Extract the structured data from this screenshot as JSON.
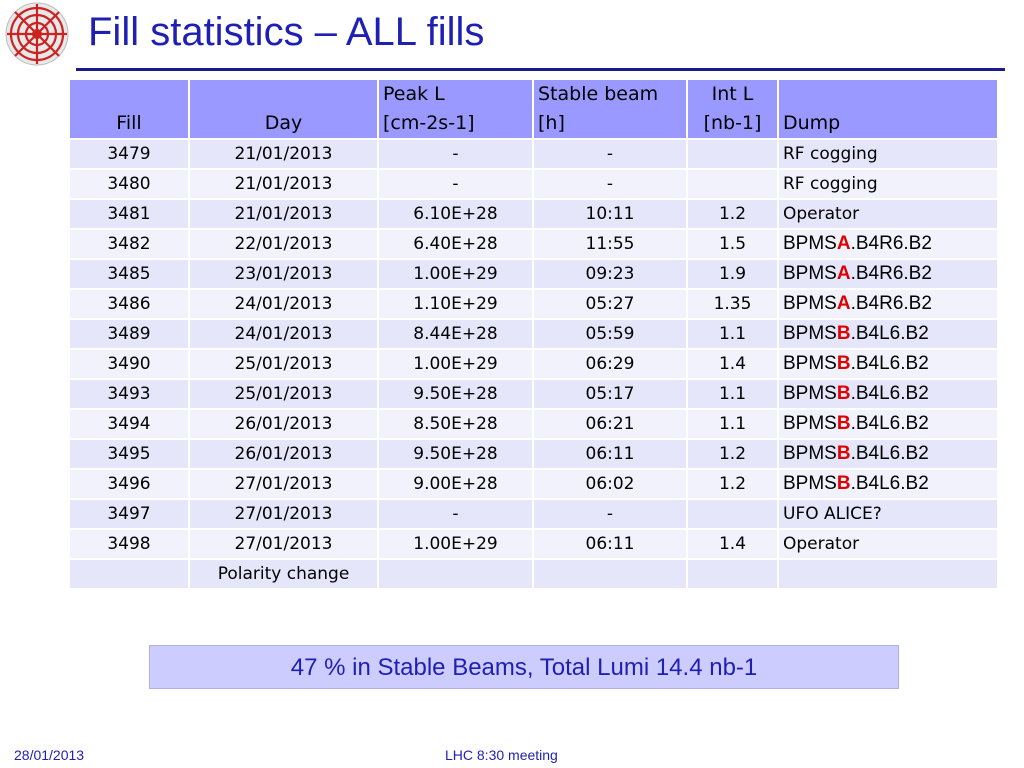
{
  "slide": {
    "title": "Fill statistics – ALL fills",
    "summary": "47 % in Stable Beams, Total Lumi 14.4 nb-1",
    "footer_date": "28/01/2013",
    "footer_meeting": "LHC 8:30 meeting"
  },
  "logo": {
    "name": "lhc-logo",
    "colors": [
      "#cc2222",
      "#d9d9d9"
    ]
  },
  "table": {
    "headers": {
      "fill": "Fill",
      "day": "Day",
      "peak_l_1": "Peak L",
      "peak_l_2": "[cm-2s-1]",
      "stable_1": "Stable beam",
      "stable_2": "[h]",
      "intl_1": "Int L",
      "intl_2": "[nb-1]",
      "dump": "Dump"
    },
    "rows": [
      {
        "fill": "3479",
        "day": "21/01/2013",
        "peak": "-",
        "stable": "-",
        "intl": "",
        "dump": "RF cogging"
      },
      {
        "fill": "3480",
        "day": "21/01/2013",
        "peak": "-",
        "stable": "-",
        "intl": "",
        "dump": "RF cogging"
      },
      {
        "fill": "3481",
        "day": "21/01/2013",
        "peak": "6.10E+28",
        "stable": "10:11",
        "intl": "1.2",
        "dump": "Operator"
      },
      {
        "fill": "3482",
        "day": "22/01/2013",
        "peak": "6.40E+28",
        "stable": "11:55",
        "intl": "1.5",
        "dump_pre": "BPMS",
        "dump_hl": "A",
        "dump_post": ".B4R6.B2"
      },
      {
        "fill": "3485",
        "day": "23/01/2013",
        "peak": "1.00E+29",
        "stable": "09:23",
        "intl": "1.9",
        "dump_pre": "BPMS",
        "dump_hl": "A",
        "dump_post": ".B4R6.B2"
      },
      {
        "fill": "3486",
        "day": "24/01/2013",
        "peak": "1.10E+29",
        "stable": "05:27",
        "intl": "1.35",
        "dump_pre": "BPMS",
        "dump_hl": "A",
        "dump_post": ".B4R6.B2"
      },
      {
        "fill": "3489",
        "day": "24/01/2013",
        "peak": "8.44E+28",
        "stable": "05:59",
        "intl": "1.1",
        "dump_pre": "BPMS",
        "dump_hl": "B",
        "dump_post": ".B4L6.B2"
      },
      {
        "fill": "3490",
        "day": "25/01/2013",
        "peak": "1.00E+29",
        "stable": "06:29",
        "intl": "1.4",
        "dump_pre": "BPMS",
        "dump_hl": "B",
        "dump_post": ".B4L6.B2"
      },
      {
        "fill": "3493",
        "day": "25/01/2013",
        "peak": "9.50E+28",
        "stable": "05:17",
        "intl": "1.1",
        "dump_pre": "BPMS",
        "dump_hl": "B",
        "dump_post": ".B4L6.B2"
      },
      {
        "fill": "3494",
        "day": "26/01/2013",
        "peak": "8.50E+28",
        "stable": "06:21",
        "intl": "1.1",
        "dump_pre": "BPMS",
        "dump_hl": "B",
        "dump_post": ".B4L6.B2"
      },
      {
        "fill": "3495",
        "day": "26/01/2013",
        "peak": "9.50E+28",
        "stable": "06:11",
        "intl": "1.2",
        "dump_pre": "BPMS",
        "dump_hl": "B",
        "dump_post": ".B4L6.B2"
      },
      {
        "fill": "3496",
        "day": "27/01/2013",
        "peak": "9.00E+28",
        "stable": "06:02",
        "intl": "1.2",
        "dump_pre": "BPMS",
        "dump_hl": "B",
        "dump_post": ".B4L6.B2"
      },
      {
        "fill": "3497",
        "day": "27/01/2013",
        "peak": "-",
        "stable": "-",
        "intl": "",
        "dump": "UFO ALICE?"
      },
      {
        "fill": "3498",
        "day": "27/01/2013",
        "peak": "1.00E+29",
        "stable": "06:11",
        "intl": "1.4",
        "dump": "Operator"
      },
      {
        "fill": "",
        "day": "Polarity change",
        "peak": "",
        "stable": "",
        "intl": "",
        "dump": ""
      }
    ]
  },
  "colors": {
    "title": "#1f1fb4",
    "header_bg": "#9999ff",
    "row_odd": "#e6e6fa",
    "row_even": "#f2f2fc",
    "highlight": "#e00000",
    "summary_bg": "#ccccff"
  }
}
